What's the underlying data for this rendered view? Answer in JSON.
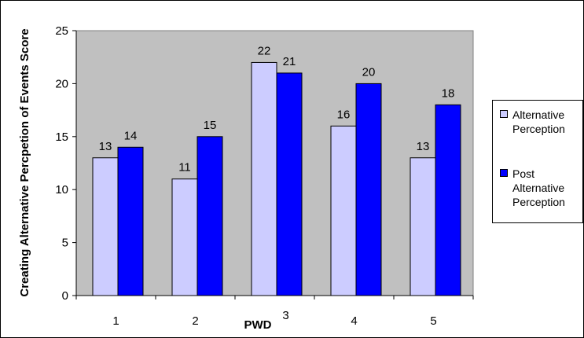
{
  "chart_data": {
    "type": "bar",
    "xlabel": "PWD",
    "ylabel": "Creating Alternative Percpetion of Events Score",
    "categories": [
      "1",
      "2",
      "3",
      "4",
      "5"
    ],
    "ylim": [
      0,
      25
    ],
    "yticks": [
      "0",
      "5",
      "10",
      "15",
      "20",
      "25"
    ],
    "series": [
      {
        "name": "Alternative Perception",
        "color": "#ccccff",
        "values": [
          13,
          11,
          22,
          16,
          13
        ]
      },
      {
        "name": "Post Alternative Perception",
        "color": "#0000ff",
        "values": [
          14,
          15,
          21,
          20,
          18
        ]
      }
    ],
    "grid": false,
    "plot_background": "#c0c0c0",
    "legend_position": "right"
  },
  "legend": {
    "items": [
      {
        "label": "Alternative\nPerception"
      },
      {
        "label": "Post\nAlternative\nPerception"
      }
    ]
  }
}
